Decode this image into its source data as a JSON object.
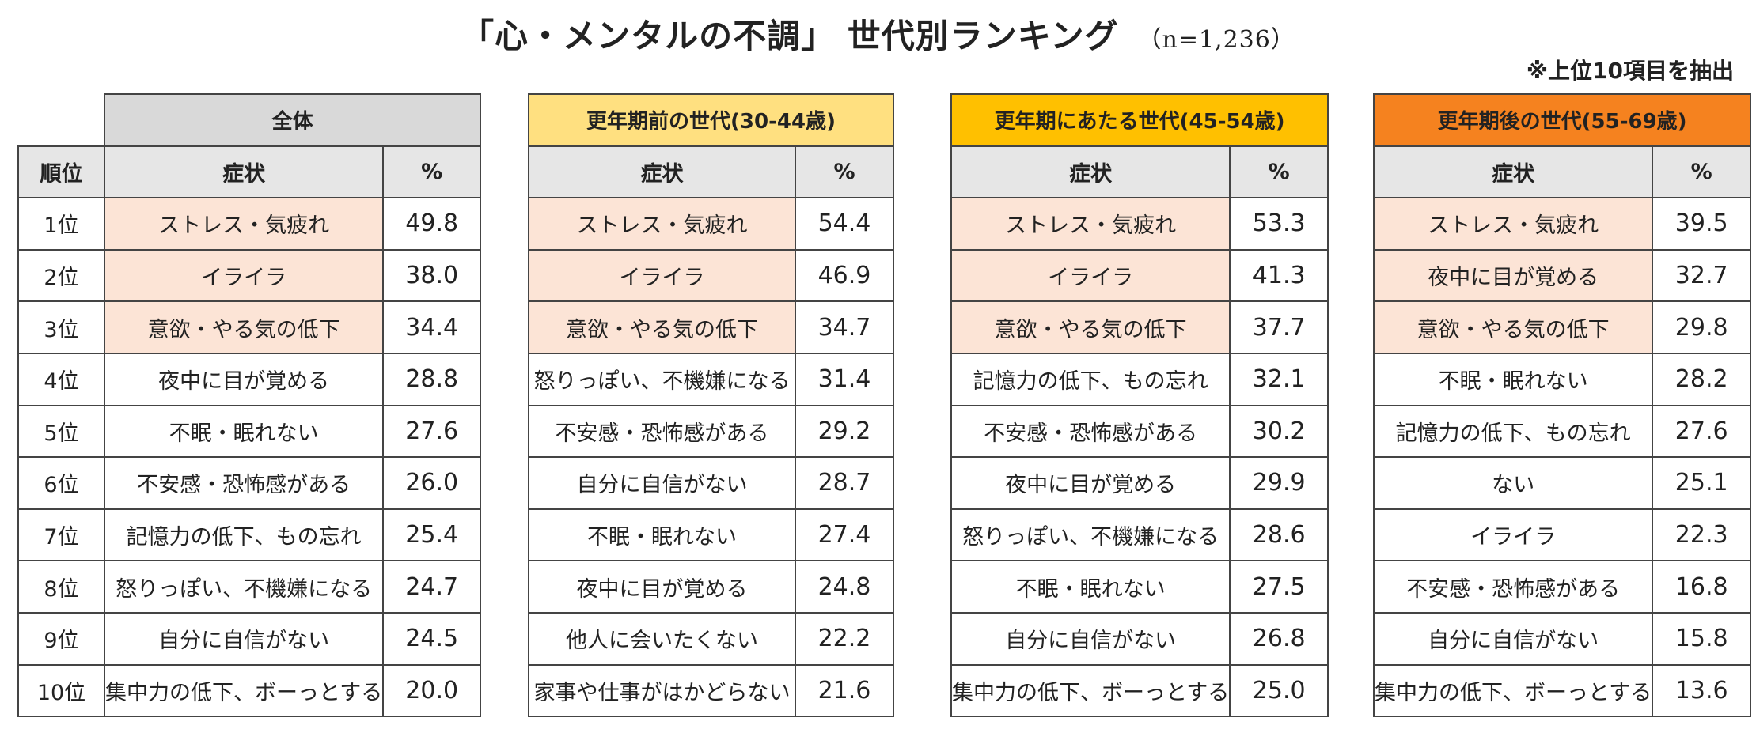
{
  "header": {
    "title": "「心・メンタルの不調」 世代別ランキング",
    "sample": "（n=1,236）",
    "note": "※上位10項目を抽出"
  },
  "colors": {
    "overall_header": "#d9d9d9",
    "pre_header": "#ffe080",
    "during_header": "#ffc000",
    "post_header": "#f5821f",
    "subheader": "#e6e6e6",
    "top3_highlight": "#fce4d6"
  },
  "chart_data": {
    "type": "table",
    "rank_header": "順位",
    "symptom_header": "症状",
    "percent_header": "%",
    "ranks": [
      "1位",
      "2位",
      "3位",
      "4位",
      "5位",
      "6位",
      "7位",
      "8位",
      "9位",
      "10位"
    ],
    "groups": [
      {
        "name": "全体",
        "color": "#d9d9d9",
        "rows": [
          {
            "symptom": "ストレス・気疲れ",
            "percent": "49.8"
          },
          {
            "symptom": "イライラ",
            "percent": "38.0"
          },
          {
            "symptom": "意欲・やる気の低下",
            "percent": "34.4"
          },
          {
            "symptom": "夜中に目が覚める",
            "percent": "28.8"
          },
          {
            "symptom": "不眠・眠れない",
            "percent": "27.6"
          },
          {
            "symptom": "不安感・恐怖感がある",
            "percent": "26.0"
          },
          {
            "symptom": "記憶力の低下、もの忘れ",
            "percent": "25.4"
          },
          {
            "symptom": "怒りっぽい、不機嫌になる",
            "percent": "24.7"
          },
          {
            "symptom": "自分に自信がない",
            "percent": "24.5"
          },
          {
            "symptom": "集中力の低下、ボーっとする",
            "percent": "20.0"
          }
        ]
      },
      {
        "name": "更年期前の世代(30-44歳)",
        "color": "#ffe080",
        "rows": [
          {
            "symptom": "ストレス・気疲れ",
            "percent": "54.4"
          },
          {
            "symptom": "イライラ",
            "percent": "46.9"
          },
          {
            "symptom": "意欲・やる気の低下",
            "percent": "34.7"
          },
          {
            "symptom": "怒りっぽい、不機嫌になる",
            "percent": "31.4"
          },
          {
            "symptom": "不安感・恐怖感がある",
            "percent": "29.2"
          },
          {
            "symptom": "自分に自信がない",
            "percent": "28.7"
          },
          {
            "symptom": "不眠・眠れない",
            "percent": "27.4"
          },
          {
            "symptom": "夜中に目が覚める",
            "percent": "24.8"
          },
          {
            "symptom": "他人に会いたくない",
            "percent": "22.2"
          },
          {
            "symptom": "家事や仕事がはかどらない",
            "percent": "21.6"
          }
        ]
      },
      {
        "name": "更年期にあたる世代(45-54歳)",
        "color": "#ffc000",
        "rows": [
          {
            "symptom": "ストレス・気疲れ",
            "percent": "53.3"
          },
          {
            "symptom": "イライラ",
            "percent": "41.3"
          },
          {
            "symptom": "意欲・やる気の低下",
            "percent": "37.7"
          },
          {
            "symptom": "記憶力の低下、もの忘れ",
            "percent": "32.1"
          },
          {
            "symptom": "不安感・恐怖感がある",
            "percent": "30.2"
          },
          {
            "symptom": "夜中に目が覚める",
            "percent": "29.9"
          },
          {
            "symptom": "怒りっぽい、不機嫌になる",
            "percent": "28.6"
          },
          {
            "symptom": "不眠・眠れない",
            "percent": "27.5"
          },
          {
            "symptom": "自分に自信がない",
            "percent": "26.8"
          },
          {
            "symptom": "集中力の低下、ボーっとする",
            "percent": "25.0"
          }
        ]
      },
      {
        "name": "更年期後の世代(55-69歳)",
        "color": "#f5821f",
        "rows": [
          {
            "symptom": "ストレス・気疲れ",
            "percent": "39.5"
          },
          {
            "symptom": "夜中に目が覚める",
            "percent": "32.7"
          },
          {
            "symptom": "意欲・やる気の低下",
            "percent": "29.8"
          },
          {
            "symptom": "不眠・眠れない",
            "percent": "28.2"
          },
          {
            "symptom": "記憶力の低下、もの忘れ",
            "percent": "27.6"
          },
          {
            "symptom": "ない",
            "percent": "25.1"
          },
          {
            "symptom": "イライラ",
            "percent": "22.3"
          },
          {
            "symptom": "不安感・恐怖感がある",
            "percent": "16.8"
          },
          {
            "symptom": "自分に自信がない",
            "percent": "15.8"
          },
          {
            "symptom": "集中力の低下、ボーっとする",
            "percent": "13.6"
          }
        ]
      }
    ]
  }
}
